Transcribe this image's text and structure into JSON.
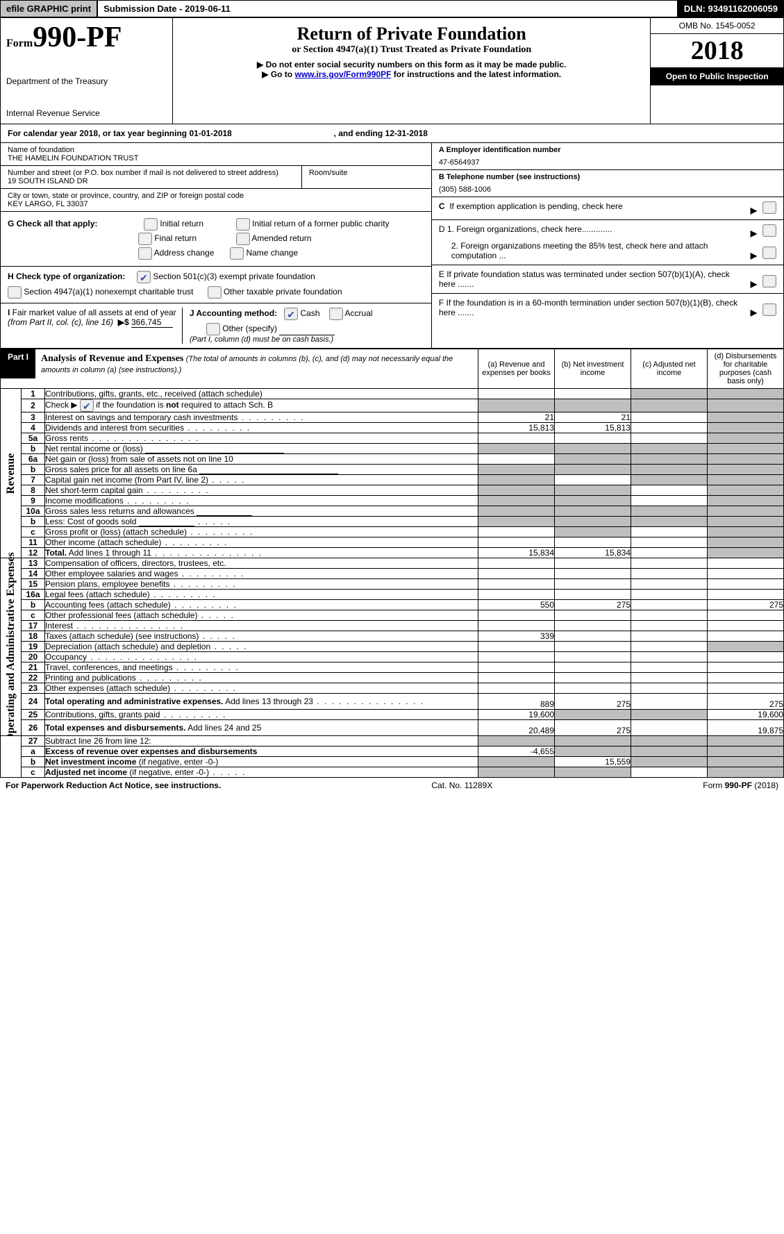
{
  "top": {
    "efile": "efile GRAPHIC print",
    "subdate_label": "Submission Date - ",
    "subdate": "2019-06-11",
    "dln_label": "DLN: ",
    "dln": "93491162006059"
  },
  "header": {
    "form_word": "Form",
    "form_no": "990-PF",
    "dept1": "Department of the Treasury",
    "dept2": "Internal Revenue Service",
    "title": "Return of Private Foundation",
    "subtitle": "or Section 4947(a)(1) Trust Treated as Private Foundation",
    "note": "▶ Do not enter social security numbers on this form as it may be made public.",
    "goto_prefix": "▶ Go to ",
    "goto_link": "www.irs.gov/Form990PF",
    "goto_suffix": " for instructions and the latest information.",
    "omb": "OMB No. 1545-0052",
    "year": "2018",
    "open": "Open to Public Inspection"
  },
  "calyear": {
    "prefix": "For calendar year 2018, or tax year beginning ",
    "begin": "01-01-2018",
    "mid": " , and ending ",
    "end": "12-31-2018"
  },
  "name_block": {
    "name_label": "Name of foundation",
    "name": "THE HAMELIN FOUNDATION TRUST",
    "addr_label": "Number and street (or P.O. box number if mail is not delivered to street address)",
    "addr": "19 SOUTH ISLAND DR",
    "room_label": "Room/suite",
    "city_label": "City or town, state or province, country, and ZIP or foreign postal code",
    "city": "KEY LARGO, FL  33037"
  },
  "rightinfo": {
    "a_label": "A Employer identification number",
    "a_val": "47-6564937",
    "b_label": "B Telephone number (see instructions)",
    "b_val": "(305) 588-1006",
    "c_label": "C  If exemption application is pending, check here",
    "d1": "D 1. Foreign organizations, check here.............",
    "d2": "2. Foreign organizations meeting the 85% test, check here and attach computation ...",
    "e": "E  If private foundation status was terminated under section 507(b)(1)(A), check here .......",
    "f": "F  If the foundation is in a 60-month termination under section 507(b)(1)(B), check here ......."
  },
  "g": {
    "label": "G Check all that apply:",
    "opts": [
      "Initial return",
      "Initial return of a former public charity",
      "Final return",
      "Amended return",
      "Address change",
      "Name change"
    ]
  },
  "h": {
    "label": "H Check type of organization:",
    "opt1": "Section 501(c)(3) exempt private foundation",
    "opt2": "Section 4947(a)(1) nonexempt charitable trust",
    "opt3": "Other taxable private foundation"
  },
  "i": {
    "label_a": "I Fair market value of all assets at end of year (from Part II, col. (c), line 16)",
    "arrow": "▶",
    "dollar": "$",
    "val": "366,745"
  },
  "j": {
    "label": "J Accounting method:",
    "cash": "Cash",
    "accrual": "Accrual",
    "other": "Other (specify)",
    "note": "(Part I, column (d) must be on cash basis.)"
  },
  "part1": {
    "tag": "Part I",
    "title": "Analysis of Revenue and Expenses",
    "note": "(The total of amounts in columns (b), (c), and (d) may not necessarily equal the amounts in column (a) (see instructions).)",
    "cols": {
      "a": "(a)   Revenue and expenses per books",
      "b": "(b)   Net investment income",
      "c": "(c)   Adjusted net income",
      "d": "(d)   Disbursements for charitable purposes (cash basis only)"
    }
  },
  "sections": {
    "revenue": "Revenue",
    "expenses": "Operating and Administrative Expenses"
  },
  "rows": [
    {
      "n": "1",
      "desc": "Contributions, gifts, grants, etc., received (attach schedule)",
      "vals": [
        "",
        "",
        "",
        ""
      ],
      "shade": [
        false,
        false,
        true,
        true
      ]
    },
    {
      "n": "2",
      "desc": "Check ▶ [cb] if the foundation is <b>not</b> required to attach Sch. B",
      "vals": [
        "",
        "",
        "",
        ""
      ],
      "shade": [
        true,
        true,
        true,
        true
      ],
      "check": true
    },
    {
      "n": "3",
      "desc": "Interest on savings and temporary cash investments",
      "dots": "med",
      "vals": [
        "21",
        "21",
        "",
        ""
      ],
      "shade": [
        false,
        false,
        false,
        true
      ]
    },
    {
      "n": "4",
      "desc": "Dividends and interest from securities",
      "dots": "med",
      "vals": [
        "15,813",
        "15,813",
        "",
        ""
      ],
      "shade": [
        false,
        false,
        false,
        true
      ]
    },
    {
      "n": "5a",
      "desc": "Gross rents",
      "dots": "long",
      "vals": [
        "",
        "",
        "",
        ""
      ],
      "shade": [
        false,
        false,
        false,
        true
      ]
    },
    {
      "n": "b",
      "desc": "Net rental income or (loss)",
      "inputline": true,
      "vals": [
        "",
        "",
        "",
        ""
      ],
      "shade": [
        true,
        true,
        true,
        true
      ]
    },
    {
      "n": "6a",
      "desc": "Net gain or (loss) from sale of assets not on line 10",
      "vals": [
        "",
        "",
        "",
        ""
      ],
      "shade": [
        false,
        true,
        true,
        true
      ]
    },
    {
      "n": "b",
      "desc": "Gross sales price for all assets on line 6a",
      "inputline": true,
      "vals": [
        "",
        "",
        "",
        ""
      ],
      "shade": [
        true,
        true,
        true,
        true
      ]
    },
    {
      "n": "7",
      "desc": "Capital gain net income (from Part IV, line 2)",
      "dots": "short",
      "vals": [
        "",
        "",
        "",
        ""
      ],
      "shade": [
        true,
        false,
        true,
        true
      ]
    },
    {
      "n": "8",
      "desc": "Net short-term capital gain",
      "dots": "med",
      "vals": [
        "",
        "",
        "",
        ""
      ],
      "shade": [
        true,
        true,
        false,
        true
      ]
    },
    {
      "n": "9",
      "desc": "Income modifications",
      "dots": "med",
      "vals": [
        "",
        "",
        "",
        ""
      ],
      "shade": [
        true,
        true,
        false,
        true
      ]
    },
    {
      "n": "10a",
      "desc": "Gross sales less returns and allowances",
      "inputline_short": true,
      "vals": [
        "",
        "",
        "",
        ""
      ],
      "shade": [
        true,
        true,
        true,
        true
      ]
    },
    {
      "n": "b",
      "desc": "Less: Cost of goods sold",
      "dots": "short",
      "inputline_short": true,
      "vals": [
        "",
        "",
        "",
        ""
      ],
      "shade": [
        true,
        true,
        true,
        true
      ]
    },
    {
      "n": "c",
      "desc": "Gross profit or (loss) (attach schedule)",
      "dots": "med",
      "vals": [
        "",
        "",
        "",
        ""
      ],
      "shade": [
        false,
        true,
        false,
        true
      ]
    },
    {
      "n": "11",
      "desc": "Other income (attach schedule)",
      "dots": "med",
      "vals": [
        "",
        "",
        "",
        ""
      ],
      "shade": [
        false,
        false,
        false,
        true
      ]
    },
    {
      "n": "12",
      "desc": "<b>Total.</b> Add lines 1 through 11",
      "dots": "long",
      "vals": [
        "15,834",
        "15,834",
        "",
        ""
      ],
      "shade": [
        false,
        false,
        false,
        true
      ]
    }
  ],
  "rows2": [
    {
      "n": "13",
      "desc": "Compensation of officers, directors, trustees, etc.",
      "vals": [
        "",
        "",
        "",
        ""
      ],
      "shade": [
        false,
        false,
        false,
        false
      ]
    },
    {
      "n": "14",
      "desc": "Other employee salaries and wages",
      "dots": "med",
      "vals": [
        "",
        "",
        "",
        ""
      ],
      "shade": [
        false,
        false,
        false,
        false
      ]
    },
    {
      "n": "15",
      "desc": "Pension plans, employee benefits",
      "dots": "med",
      "vals": [
        "",
        "",
        "",
        ""
      ],
      "shade": [
        false,
        false,
        false,
        false
      ]
    },
    {
      "n": "16a",
      "desc": "Legal fees (attach schedule)",
      "dots": "med",
      "vals": [
        "",
        "",
        "",
        ""
      ],
      "shade": [
        false,
        false,
        false,
        false
      ]
    },
    {
      "n": "b",
      "desc": "Accounting fees (attach schedule)",
      "dots": "med",
      "vals": [
        "550",
        "275",
        "",
        "275"
      ],
      "shade": [
        false,
        false,
        false,
        false
      ]
    },
    {
      "n": "c",
      "desc": "Other professional fees (attach schedule)",
      "dots": "short",
      "vals": [
        "",
        "",
        "",
        ""
      ],
      "shade": [
        false,
        false,
        false,
        false
      ]
    },
    {
      "n": "17",
      "desc": "Interest",
      "dots": "long",
      "vals": [
        "",
        "",
        "",
        ""
      ],
      "shade": [
        false,
        false,
        false,
        false
      ]
    },
    {
      "n": "18",
      "desc": "Taxes (attach schedule) (see instructions)",
      "dots": "short",
      "vals": [
        "339",
        "",
        "",
        ""
      ],
      "shade": [
        false,
        false,
        false,
        false
      ]
    },
    {
      "n": "19",
      "desc": "Depreciation (attach schedule) and depletion",
      "dots": "short",
      "vals": [
        "",
        "",
        "",
        ""
      ],
      "shade": [
        false,
        false,
        false,
        true
      ]
    },
    {
      "n": "20",
      "desc": "Occupancy",
      "dots": "long",
      "vals": [
        "",
        "",
        "",
        ""
      ],
      "shade": [
        false,
        false,
        false,
        false
      ]
    },
    {
      "n": "21",
      "desc": "Travel, conferences, and meetings",
      "dots": "med",
      "vals": [
        "",
        "",
        "",
        ""
      ],
      "shade": [
        false,
        false,
        false,
        false
      ]
    },
    {
      "n": "22",
      "desc": "Printing and publications",
      "dots": "med",
      "vals": [
        "",
        "",
        "",
        ""
      ],
      "shade": [
        false,
        false,
        false,
        false
      ]
    },
    {
      "n": "23",
      "desc": "Other expenses (attach schedule)",
      "dots": "med",
      "vals": [
        "",
        "",
        "",
        ""
      ],
      "shade": [
        false,
        false,
        false,
        false
      ]
    },
    {
      "n": "24",
      "desc": "<b>Total operating and administrative expenses.</b> Add lines 13 through 23",
      "dots": "long",
      "vals": [
        "889",
        "275",
        "",
        "275"
      ],
      "shade": [
        false,
        false,
        false,
        false
      ],
      "twoLine": true
    },
    {
      "n": "25",
      "desc": "Contributions, gifts, grants paid",
      "dots": "med",
      "vals": [
        "19,600",
        "",
        "",
        "19,600"
      ],
      "shade": [
        false,
        true,
        true,
        false
      ]
    },
    {
      "n": "26",
      "desc": "<b>Total expenses and disbursements.</b> Add lines 24 and 25",
      "vals": [
        "20,489",
        "275",
        "",
        "19,875"
      ],
      "shade": [
        false,
        false,
        false,
        false
      ],
      "twoLine": true
    }
  ],
  "rows3": [
    {
      "n": "27",
      "desc": "Subtract line 26 from line 12:",
      "vals": [
        "",
        "",
        "",
        ""
      ],
      "shade": [
        true,
        true,
        true,
        true
      ]
    },
    {
      "n": "a",
      "desc": "<b>Excess of revenue over expenses and disbursements</b>",
      "vals": [
        "-4,655",
        "",
        "",
        ""
      ],
      "shade": [
        false,
        true,
        true,
        true
      ]
    },
    {
      "n": "b",
      "desc": "<b>Net investment income</b> (if negative, enter -0-)",
      "vals": [
        "",
        "15,559",
        "",
        ""
      ],
      "shade": [
        true,
        false,
        true,
        true
      ]
    },
    {
      "n": "c",
      "desc": "<b>Adjusted net income</b> (if negative, enter -0-)",
      "dots": "short",
      "vals": [
        "",
        "",
        "",
        ""
      ],
      "shade": [
        true,
        true,
        false,
        true
      ]
    }
  ],
  "footer": {
    "left": "For Paperwork Reduction Act Notice, see instructions.",
    "mid": "Cat. No. 11289X",
    "right": "Form 990-PF (2018)"
  }
}
